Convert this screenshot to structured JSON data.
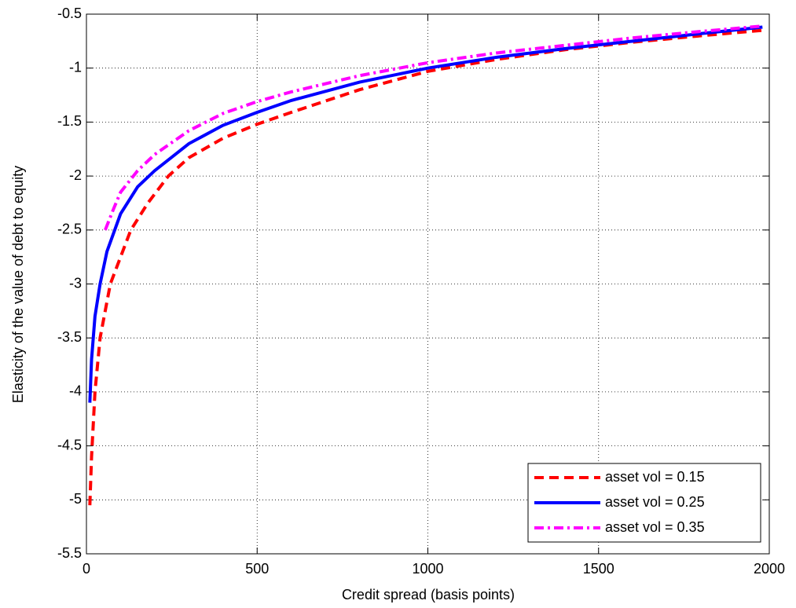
{
  "chart_data": {
    "type": "line",
    "x_label": "Credit spread (basis points)",
    "y_label": "Elasticity of the value of debt to equity",
    "xlim": [
      0,
      2000
    ],
    "xticks": [
      0,
      500,
      1000,
      1500,
      2000
    ],
    "ylim": [
      -5.5,
      -0.5
    ],
    "yticks": [
      -5.5,
      -5,
      -4.5,
      -4,
      -3.5,
      -3,
      -2.5,
      -2,
      -1.5,
      -1,
      -0.5
    ],
    "grid": true,
    "legend": "southeast",
    "series": [
      {
        "name": "asset vol = 0.15",
        "color": "#ff0000",
        "style": "dashed",
        "x": [
          10,
          15,
          25,
          40,
          70,
          100,
          130,
          180,
          240,
          300,
          400,
          500,
          600,
          800,
          1000,
          1200,
          1400,
          1600,
          1800,
          1980
        ],
        "values": [
          -5.05,
          -4.6,
          -4.0,
          -3.5,
          -3.0,
          -2.75,
          -2.5,
          -2.25,
          -2.0,
          -1.83,
          -1.65,
          -1.52,
          -1.41,
          -1.2,
          -1.03,
          -0.92,
          -0.83,
          -0.76,
          -0.7,
          -0.65
        ]
      },
      {
        "name": "asset vol = 0.25",
        "color": "#0000ff",
        "style": "solid",
        "x": [
          10,
          15,
          25,
          40,
          60,
          100,
          150,
          200,
          300,
          400,
          500,
          600,
          800,
          1000,
          1200,
          1400,
          1600,
          1800,
          1980
        ],
        "values": [
          -4.1,
          -3.7,
          -3.3,
          -3.0,
          -2.7,
          -2.35,
          -2.1,
          -1.95,
          -1.7,
          -1.53,
          -1.41,
          -1.3,
          -1.13,
          -1.0,
          -0.9,
          -0.82,
          -0.75,
          -0.68,
          -0.62
        ]
      },
      {
        "name": "asset vol = 0.35",
        "color": "#ff00ff",
        "style": "dashdot",
        "x": [
          55,
          80,
          100,
          150,
          200,
          300,
          400,
          500,
          600,
          800,
          1000,
          1200,
          1400,
          1600,
          1800,
          1980
        ],
        "values": [
          -2.5,
          -2.3,
          -2.15,
          -1.95,
          -1.8,
          -1.58,
          -1.42,
          -1.31,
          -1.22,
          -1.07,
          -0.95,
          -0.86,
          -0.79,
          -0.72,
          -0.66,
          -0.61
        ]
      }
    ]
  }
}
